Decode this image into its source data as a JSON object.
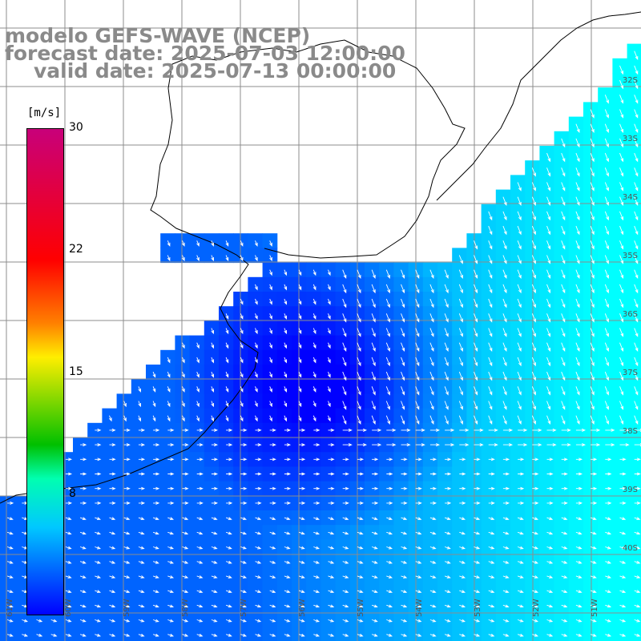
{
  "title_lines": [
    "modelo GEFS-WAVE (NCEP)",
    "forecast date: 2025-07-03 12:00:00",
    "valid date: 2025-07-13 00:00:00"
  ],
  "colorbar": {
    "unit": "[m/s]",
    "ticks": [
      "30",
      "22",
      "15",
      "8"
    ],
    "colors": [
      "#c8007a",
      "#ff0000",
      "#ff8000",
      "#ffee00",
      "#00c000",
      "#00ffb0",
      "#00c8ff",
      "#0000ff"
    ]
  },
  "lat_labels": [
    "32S",
    "33S",
    "34S",
    "35S",
    "36S",
    "37S",
    "38S",
    "39S",
    "40S"
  ],
  "lon_labels": [
    "61W",
    "60W",
    "59W",
    "58W",
    "57W",
    "56W",
    "55W",
    "54W",
    "53W",
    "52W",
    "51W"
  ],
  "colors": {
    "land": "#ffffff",
    "grid": "#8c8c8c",
    "coast": "#000000",
    "arrow": "#ffffff",
    "title": "#8a8a8a"
  }
}
